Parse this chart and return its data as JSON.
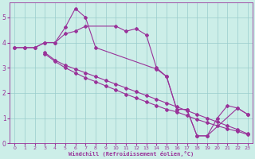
{
  "xlabel": "Windchill (Refroidissement éolien,°C)",
  "xlim": [
    -0.5,
    23.5
  ],
  "ylim": [
    0,
    5.6
  ],
  "yticks": [
    0,
    1,
    2,
    3,
    4,
    5
  ],
  "xticks": [
    0,
    1,
    2,
    3,
    4,
    5,
    6,
    7,
    8,
    9,
    10,
    11,
    12,
    13,
    14,
    15,
    16,
    17,
    18,
    19,
    20,
    21,
    22,
    23
  ],
  "background_color": "#cceee8",
  "line_color": "#993399",
  "grid_color": "#99cccc",
  "lines": [
    {
      "x": [
        0,
        1,
        2,
        3,
        4,
        5,
        6,
        7,
        8,
        14,
        15,
        16,
        17,
        18,
        19,
        22,
        23
      ],
      "y": [
        3.8,
        3.8,
        3.8,
        4.0,
        4.0,
        4.6,
        5.35,
        5.0,
        3.8,
        2.95,
        2.65,
        1.35,
        1.35,
        0.3,
        0.3,
        1.4,
        1.15
      ]
    },
    {
      "x": [
        0,
        1,
        2,
        3,
        4,
        5,
        6,
        7,
        10,
        11,
        12,
        13,
        14,
        15,
        16,
        17,
        18,
        19,
        20,
        21,
        22,
        23
      ],
      "y": [
        3.8,
        3.8,
        3.8,
        4.0,
        4.0,
        4.35,
        4.45,
        4.65,
        4.65,
        4.45,
        4.55,
        4.3,
        3.0,
        2.65,
        1.35,
        1.35,
        0.3,
        0.3,
        1.0,
        1.5,
        1.4,
        1.15
      ]
    },
    {
      "x": [
        3,
        4,
        5,
        6,
        7,
        8,
        9,
        10,
        11,
        12,
        13,
        14,
        15,
        16,
        17,
        18,
        19,
        20,
        21,
        22,
        23
      ],
      "y": [
        3.6,
        3.3,
        3.1,
        2.95,
        2.8,
        2.65,
        2.5,
        2.35,
        2.2,
        2.05,
        1.9,
        1.75,
        1.6,
        1.45,
        1.3,
        1.15,
        1.0,
        0.85,
        0.7,
        0.55,
        0.38
      ]
    },
    {
      "x": [
        3,
        4,
        5,
        6,
        7,
        8,
        9,
        10,
        11,
        12,
        13,
        14,
        15,
        16,
        17,
        18,
        19,
        20,
        21,
        22,
        23
      ],
      "y": [
        3.55,
        3.25,
        3.0,
        2.8,
        2.6,
        2.45,
        2.28,
        2.12,
        1.95,
        1.8,
        1.65,
        1.5,
        1.35,
        1.25,
        1.1,
        0.95,
        0.82,
        0.7,
        0.58,
        0.48,
        0.35
      ]
    }
  ]
}
